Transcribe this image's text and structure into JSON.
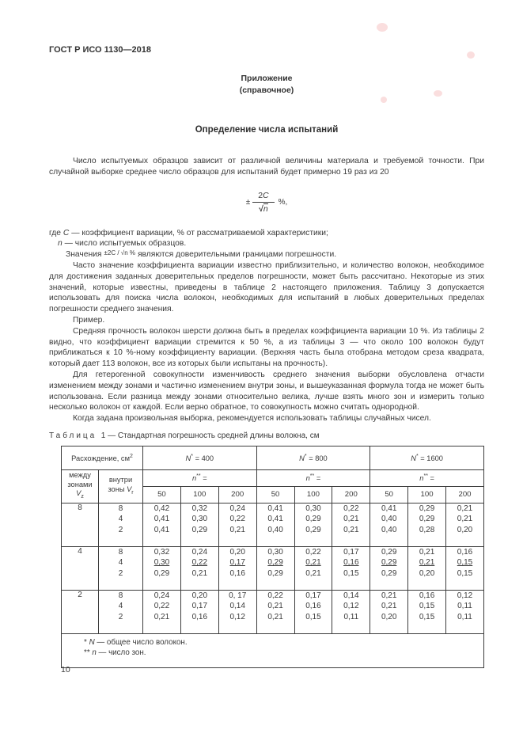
{
  "page": {
    "doc_ref": "ГОСТ Р ИСО 1130—2018",
    "annex_label": "Приложение",
    "annex_kind": "(справочное)",
    "title": "Определение числа испытаний",
    "page_number": "10"
  },
  "intro": "Число испытуемых образцов зависит от различной величины материала и требуемой точности. При случайной выборке среднее число образцов для испытаний будет примерно 19 раз из 20",
  "formula": {
    "sign": "±",
    "num_coef": "2",
    "num_var": "C",
    "radical": "√",
    "denominator": "n",
    "suffix": "%,"
  },
  "where": {
    "line1_prefix": "где ",
    "line1_var": "C",
    "line1_rest": " — коэффициент вариации, % от рассматриваемой характеристики;",
    "line2_var": "n",
    "line2_rest": " — число испытуемых образцов.",
    "line3_prefix": "Значения",
    "line3_formula": "±2C / √n %",
    "line3_rest": "являются доверительными границами погрешности."
  },
  "paragraphs": [
    "Часто значение коэффициента вариации известно приблизительно, и количество волокон, необходимое для достижения заданных доверительных пределов погрешности, может быть рассчитано. Некоторые из этих значений, которые известны, приведены в таблице 2 настоящего приложения. Таблицу 3 допускается использовать для поиска числа волокон, необходимых для испытаний в любых доверительных пределах погрешности среднего значения.",
    "Пример.",
    "Средняя прочность волокон шерсти должна быть в пределах коэффициента вариации 10 %. Из таблицы 2 видно, что коэффициент вариации стремится к 50 %, а из таблицы 3 — что около 100 волокон будут приближаться к 10 %-ному коэффициенту вариации. (Верхняя часть была отобрана методом среза квадрата, который дает 113 волокон, все из которых были испытаны на прочность).",
    "Для гетерогенной совокупности изменчивость среднего значения выборки обусловлена отчасти изменением между зонами и частично изменением внутри зоны, и вышеуказанная формула тогда не может быть использована. Если разница между зонами относительно велика, лучше взять много зон и измерить только несколько волокон от каждой. Если верно обратное, то совокупность можно считать однородной.",
    "Когда задана произвольная выборка, рекомендуется использовать таблицы случайных чисел."
  ],
  "table": {
    "caption": {
      "word": "Таблица",
      "num": "1",
      "rest": "— Стандартная погрешность средней длины волокна, см"
    },
    "header": {
      "discrepancy": "Расхождение, см",
      "discrepancy_sup": "2",
      "between_l1": "между",
      "between_l2": "зонами",
      "between_var": "V",
      "between_sub": "z",
      "within_l1": "внутри",
      "within_l2": "зоны ",
      "within_var": "V",
      "within_sub": "r",
      "n_groups": [
        {
          "var": "N",
          "sup": "*",
          "rest": " = 400"
        },
        {
          "var": "N",
          "sup": "*",
          "rest": " = 800"
        },
        {
          "var": "N",
          "sup": "*",
          "rest": " = 1600"
        }
      ],
      "n_sub": {
        "var": "n",
        "sup": "**",
        "rest": " ="
      },
      "counts": [
        "50",
        "100",
        "200"
      ]
    },
    "groups": [
      {
        "vz": "8",
        "rows": [
          {
            "vr": "8",
            "underline": false,
            "values": [
              "0,42",
              "0,32",
              "0,24",
              "0,41",
              "0,30",
              "0,22",
              "0,41",
              "0,29",
              "0,21"
            ]
          },
          {
            "vr": "4",
            "underline": false,
            "values": [
              "0,41",
              "0,30",
              "0,22",
              "0,41",
              "0,29",
              "0,21",
              "0,40",
              "0,29",
              "0,21"
            ]
          },
          {
            "vr": "2",
            "underline": false,
            "values": [
              "0,41",
              "0,29",
              "0,21",
              "0,40",
              "0,29",
              "0,21",
              "0,40",
              "0,28",
              "0,20"
            ]
          }
        ]
      },
      {
        "vz": "4",
        "rows": [
          {
            "vr": "8",
            "underline": false,
            "values": [
              "0,32",
              "0,24",
              "0,20",
              "0,30",
              "0,22",
              "0,17",
              "0,29",
              "0,21",
              "0,16"
            ]
          },
          {
            "vr": "4",
            "underline": true,
            "values": [
              "0,30",
              "0,22",
              "0,17",
              "0,29",
              "0,21",
              "0,16",
              "0,29",
              "0,21",
              "0,15"
            ]
          },
          {
            "vr": "2",
            "underline": false,
            "values": [
              "0,29",
              "0,21",
              "0,16",
              "0,29",
              "0,21",
              "0,15",
              "0,29",
              "0,20",
              "0,15"
            ]
          }
        ]
      },
      {
        "vz": "2",
        "rows": [
          {
            "vr": "8",
            "underline": false,
            "values": [
              "0,24",
              "0,20",
              "0, 17",
              "0,22",
              "0,17",
              "0,14",
              "0,21",
              "0,16",
              "0,12"
            ]
          },
          {
            "vr": "4",
            "underline": false,
            "values": [
              "0,22",
              "0,17",
              "0,14",
              "0,21",
              "0,16",
              "0,12",
              "0,21",
              "0,15",
              "0,11"
            ]
          },
          {
            "vr": "2",
            "underline": false,
            "values": [
              "0,21",
              "0,16",
              "0,12",
              "0,21",
              "0,15",
              "0,11",
              "0,20",
              "0,15",
              "0,11"
            ]
          }
        ]
      }
    ],
    "footnotes": [
      {
        "sym": "*",
        "var": "N",
        "rest": " — общее число волокон."
      },
      {
        "sym": "**",
        "var": "n",
        "rest": " — число зон."
      }
    ]
  }
}
